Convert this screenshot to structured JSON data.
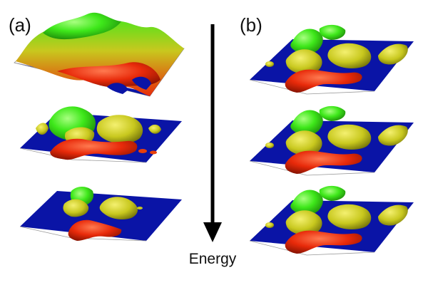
{
  "figure": {
    "panel_a_label": "(a)",
    "panel_b_label": "(b)",
    "arrow_label": "Energy"
  },
  "colors": {
    "water": "#0a14a6",
    "low": "#e82a0a",
    "mid": "#c8c81e",
    "high": "#3ee81a",
    "arrow": "#000000",
    "text": "#111111"
  },
  "panels": {
    "a": [
      {
        "level": "high",
        "surface": "landscape",
        "sea_level": 0.15
      },
      {
        "level": "mid",
        "surface": "landscape",
        "sea_level": 0.5
      },
      {
        "level": "low",
        "surface": "landscape",
        "sea_level": 0.75
      }
    ],
    "b": [
      {
        "level": "high",
        "surface": "landscape",
        "sea_level": 0.55
      },
      {
        "level": "mid",
        "surface": "landscape",
        "sea_level": 0.55
      },
      {
        "level": "low",
        "surface": "landscape",
        "sea_level": 0.55
      }
    ]
  }
}
